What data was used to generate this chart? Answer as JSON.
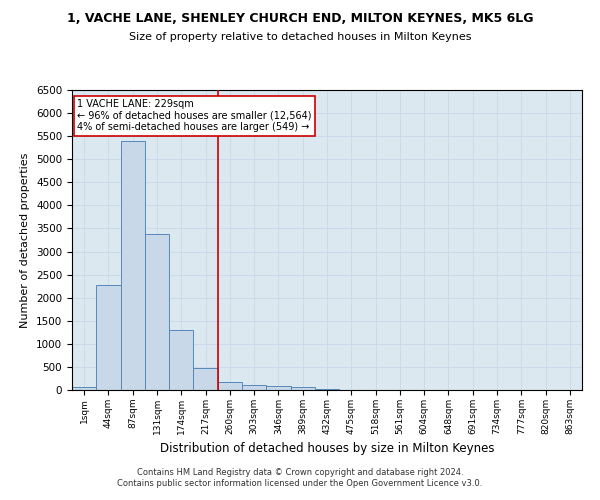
{
  "title": "1, VACHE LANE, SHENLEY CHURCH END, MILTON KEYNES, MK5 6LG",
  "subtitle": "Size of property relative to detached houses in Milton Keynes",
  "xlabel": "Distribution of detached houses by size in Milton Keynes",
  "ylabel": "Number of detached properties",
  "bin_labels": [
    "1sqm",
    "44sqm",
    "87sqm",
    "131sqm",
    "174sqm",
    "217sqm",
    "260sqm",
    "303sqm",
    "346sqm",
    "389sqm",
    "432sqm",
    "475sqm",
    "518sqm",
    "561sqm",
    "604sqm",
    "648sqm",
    "691sqm",
    "734sqm",
    "777sqm",
    "820sqm",
    "863sqm"
  ],
  "bin_counts": [
    75,
    2280,
    5400,
    3380,
    1310,
    480,
    165,
    115,
    80,
    55,
    30,
    10,
    5,
    0,
    0,
    0,
    0,
    0,
    0,
    0,
    0
  ],
  "bar_color": "#c8d8e8",
  "bar_edge_color": "#5588bb",
  "property_line_x": 5.5,
  "property_line_color": "#cc0000",
  "annotation_line1": "1 VACHE LANE: 229sqm",
  "annotation_line2": "← 96% of detached houses are smaller (12,564)",
  "annotation_line3": "4% of semi-detached houses are larger (549) →",
  "annotation_box_color": "#cc0000",
  "ylim": [
    0,
    6500
  ],
  "yticks": [
    0,
    500,
    1000,
    1500,
    2000,
    2500,
    3000,
    3500,
    4000,
    4500,
    5000,
    5500,
    6000,
    6500
  ],
  "grid_color": "#c8d8e8",
  "background_color": "#dce8f0",
  "footer_line1": "Contains HM Land Registry data © Crown copyright and database right 2024.",
  "footer_line2": "Contains public sector information licensed under the Open Government Licence v3.0."
}
